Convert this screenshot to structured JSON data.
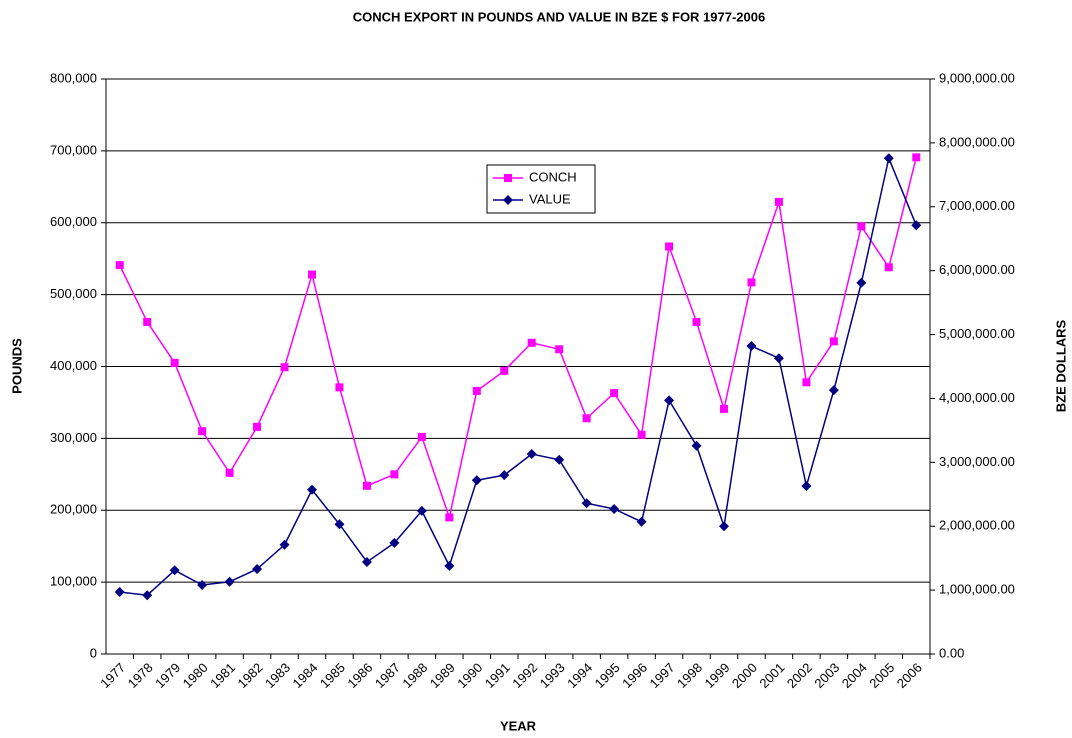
{
  "chart_data": {
    "type": "line",
    "title": "CONCH EXPORT IN POUNDS AND VALUE IN BZE $ FOR 1977-2006",
    "x_label": "YEAR",
    "y_label": "POUNDS",
    "y2_label": "BZE DOLLARS",
    "categories": [
      "1977",
      "1978",
      "1979",
      "1980",
      "1981",
      "1982",
      "1983",
      "1984",
      "1985",
      "1986",
      "1987",
      "1988",
      "1989",
      "1990",
      "1991",
      "1992",
      "1993",
      "1994",
      "1995",
      "1996",
      "1997",
      "1998",
      "1999",
      "2000",
      "2001",
      "2002",
      "2003",
      "2004",
      "2005",
      "2006"
    ],
    "series": [
      {
        "name": "CONCH",
        "color": "#ff00ff",
        "marker": "square",
        "values": [
          541000,
          462000,
          405000,
          310000,
          252000,
          316000,
          399000,
          528000,
          371000,
          234000,
          250000,
          302000,
          190000,
          366000,
          394000,
          433000,
          424000,
          328000,
          363000,
          305000,
          567000,
          462000,
          341000,
          517000,
          629000,
          378000,
          435000,
          595000,
          538000,
          691000
        ]
      },
      {
        "name": "VALUE",
        "color": "#000080",
        "marker": "diamond",
        "axis": "y2",
        "values": [
          970000,
          920000,
          1310000,
          1080000,
          1130000,
          1330000,
          1710000,
          2570000,
          2030000,
          1440000,
          1740000,
          2240000,
          1380000,
          2720000,
          2800000,
          3130000,
          3040000,
          2360000,
          2270000,
          2070000,
          3970000,
          3260000,
          2000000,
          4820000,
          4630000,
          2630000,
          4130000,
          5810000,
          7760000,
          6710000
        ]
      }
    ],
    "ylim": [
      0,
      800000
    ],
    "yticks": [
      0,
      {
        "value": 100000,
        "label": "100,000"
      },
      {
        "value": 200000,
        "label": "200,000"
      },
      {
        "value": 300000,
        "label": "300,000"
      },
      {
        "value": 400000,
        "label": "400,000"
      },
      {
        "value": 500000,
        "label": "500,000"
      },
      {
        "value": 600000,
        "label": "600,000"
      },
      {
        "value": 700000,
        "label": "700,000"
      },
      {
        "value": 800000,
        "label": "800,000"
      }
    ],
    "y2lim": [
      0,
      9000000
    ],
    "y2ticks": [
      {
        "value": 0,
        "label": "0.00"
      },
      {
        "value": 1000000,
        "label": "1,000,000.00"
      },
      {
        "value": 2000000,
        "label": "2,000,000.00"
      },
      {
        "value": 3000000,
        "label": "3,000,000.00"
      },
      {
        "value": 4000000,
        "label": "4,000,000.00"
      },
      {
        "value": 5000000,
        "label": "5,000,000.00"
      },
      {
        "value": 6000000,
        "label": "6,000,000.00"
      },
      {
        "value": 7000000,
        "label": "7,000,000.00"
      },
      {
        "value": 8000000,
        "label": "8,000,000.00"
      },
      {
        "value": 9000000,
        "label": "9,000,000.00"
      }
    ],
    "grid": true,
    "legend_position": "top"
  }
}
